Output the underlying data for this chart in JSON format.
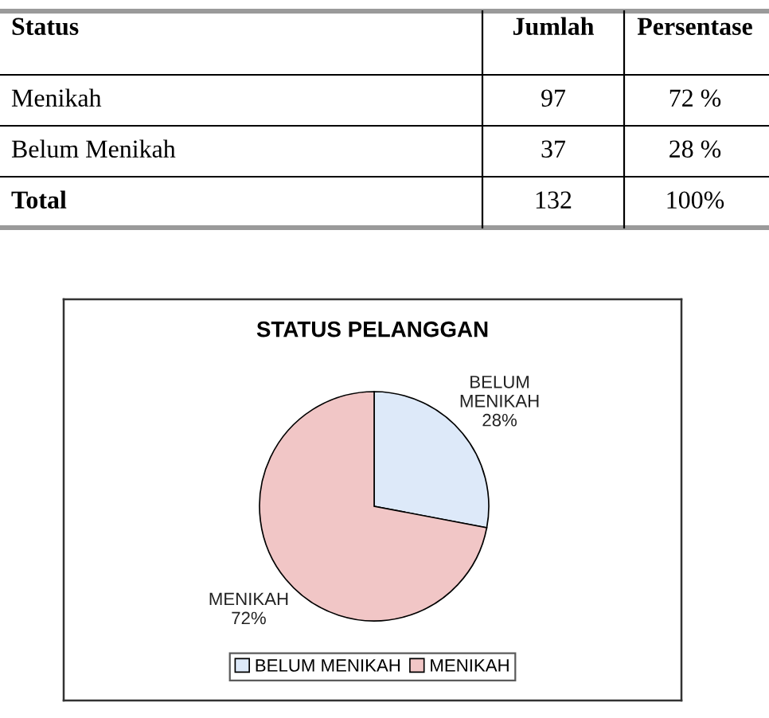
{
  "chart_data": [
    {
      "type": "other",
      "xlabel": "Status",
      "categories": [
        "Menikah",
        "Belum Menikah",
        "Total"
      ],
      "data_labels": true,
      "series": [
        {
          "name": "Jumlah",
          "values": [
            97,
            37,
            132
          ]
        },
        {
          "name": "Persentase",
          "values": [
            72,
            28,
            100
          ],
          "value_labels": [
            "72 %",
            "28 %",
            "100%"
          ]
        }
      ]
    },
    {
      "type": "pie",
      "title": "STATUS PELANGGAN",
      "categories": [
        "BELUM MENIKAH",
        "MENIKAH"
      ],
      "values": [
        28,
        72
      ],
      "colors": [
        "#dde9f9",
        "#f1c6c6"
      ],
      "value_labels": [
        "28%",
        "72%"
      ],
      "legend": "bottom"
    }
  ]
}
